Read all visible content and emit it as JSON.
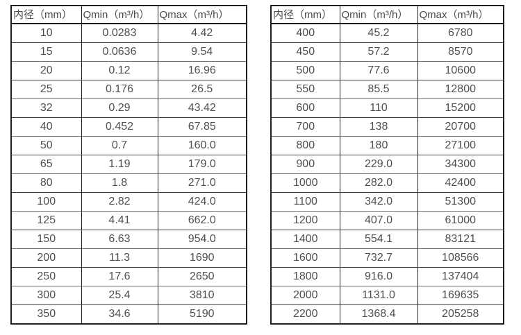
{
  "page": {
    "background_color": "#ffffff",
    "text_color": "#4f4f4f",
    "border_color": "#1f1f1f",
    "description": "Two side-by-side flow rate tables listing minimum and maximum flow (Qmin/Qmax) per inner pipe diameter"
  },
  "tables": [
    {
      "id": "small-diameters",
      "headers": [
        "内径（mm）",
        "Qmin（m³/h）",
        "Qmax（m³/h）"
      ],
      "rows": [
        [
          "10",
          "0.0283",
          "4.42"
        ],
        [
          "15",
          "0.0636",
          "9.54"
        ],
        [
          "20",
          "0.12",
          "16.96"
        ],
        [
          "25",
          "0.176",
          "26.5"
        ],
        [
          "32",
          "0.29",
          "43.42"
        ],
        [
          "40",
          "0.452",
          "67.85"
        ],
        [
          "50",
          "0.7",
          "160.0"
        ],
        [
          "65",
          "1.19",
          "179.0"
        ],
        [
          "80",
          "1.8",
          "271.0"
        ],
        [
          "100",
          "2.82",
          "424.0"
        ],
        [
          "125",
          "4.41",
          "662.0"
        ],
        [
          "150",
          "6.63",
          "954.0"
        ],
        [
          "200",
          "11.3",
          "1690"
        ],
        [
          "250",
          "17.6",
          "2650"
        ],
        [
          "300",
          "25.4",
          "3810"
        ],
        [
          "350",
          "34.6",
          "5190"
        ]
      ]
    },
    {
      "id": "large-diameters",
      "headers": [
        "内径（mm）",
        "Qmin（m³/h）",
        "Qmax（m³/h）"
      ],
      "rows": [
        [
          "400",
          "45.2",
          "6780"
        ],
        [
          "450",
          "57.2",
          "8570"
        ],
        [
          "500",
          "77.6",
          "10600"
        ],
        [
          "550",
          "85.5",
          "12800"
        ],
        [
          "600",
          "110",
          "15200"
        ],
        [
          "700",
          "138",
          "20700"
        ],
        [
          "800",
          "180",
          "27100"
        ],
        [
          "900",
          "229.0",
          "34300"
        ],
        [
          "1000",
          "282.0",
          "42400"
        ],
        [
          "1100",
          "342.0",
          "51300"
        ],
        [
          "1200",
          "407.0",
          "61000"
        ],
        [
          "1400",
          "554.1",
          "83121"
        ],
        [
          "1600",
          "732.7",
          "108566"
        ],
        [
          "1800",
          "916.0",
          "137404"
        ],
        [
          "2000",
          "1131.0",
          "169635"
        ],
        [
          "2200",
          "1368.4",
          "205258"
        ]
      ]
    }
  ]
}
